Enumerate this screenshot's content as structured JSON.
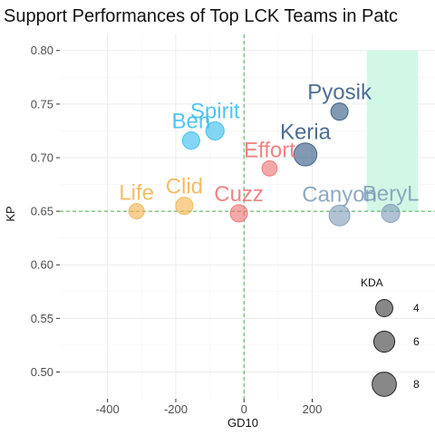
{
  "chart_data": {
    "type": "scatter",
    "title": "Support Performances of Top LCK Teams in Patc",
    "xlabel": "GD10",
    "ylabel": "KP",
    "xlim": [
      -540,
      560
    ],
    "ylim": [
      0.475,
      0.815
    ],
    "x_ticks": [
      -400,
      -200,
      0,
      200
    ],
    "y_ticks": [
      0.5,
      0.55,
      0.6,
      0.65,
      0.7,
      0.75,
      0.8
    ],
    "x_tick_labels": [
      "-400",
      "-200",
      "0",
      "200"
    ],
    "y_tick_labels": [
      "0.50",
      "0.55",
      "0.60",
      "0.65",
      "0.70",
      "0.75",
      "0.80"
    ],
    "ref_lines": {
      "x": 0,
      "y": 0.65,
      "color": "#4caf50"
    },
    "highlight_region": {
      "x": [
        360,
        510
      ],
      "y": [
        0.65,
        0.8
      ],
      "color": "#ccf7e3"
    },
    "grid": true,
    "legend": {
      "title": "KDA",
      "placement": "right",
      "entries": [
        {
          "value": 4,
          "label": "4"
        },
        {
          "value": 6,
          "label": "6"
        },
        {
          "value": 8,
          "label": "8"
        }
      ]
    },
    "points": [
      {
        "name": "Pyosik",
        "x": 280,
        "y": 0.743,
        "kda": 4.5,
        "color": "#2f5580"
      },
      {
        "name": "Keria",
        "x": 180,
        "y": 0.703,
        "kda": 8.0,
        "color": "#2f5580"
      },
      {
        "name": "Spirit",
        "x": -85,
        "y": 0.725,
        "kda": 5.0,
        "color": "#33bbee"
      },
      {
        "name": "Ben",
        "x": -155,
        "y": 0.716,
        "kda": 4.5,
        "color": "#33bbee"
      },
      {
        "name": "Effort",
        "x": 75,
        "y": 0.69,
        "kda": 3.5,
        "color": "#ee6e6e"
      },
      {
        "name": "Cuzz",
        "x": -15,
        "y": 0.648,
        "kda": 4.5,
        "color": "#ee6e6e"
      },
      {
        "name": "Clid",
        "x": -175,
        "y": 0.655,
        "kda": 4.5,
        "color": "#f5b04a"
      },
      {
        "name": "Life",
        "x": -315,
        "y": 0.65,
        "kda": 3.5,
        "color": "#f5b04a"
      },
      {
        "name": "Canyon",
        "x": 280,
        "y": 0.646,
        "kda": 6.5,
        "color": "#7b9ab8"
      },
      {
        "name": "BeryL",
        "x": 430,
        "y": 0.648,
        "kda": 5.0,
        "color": "#7b9ab8"
      }
    ]
  }
}
